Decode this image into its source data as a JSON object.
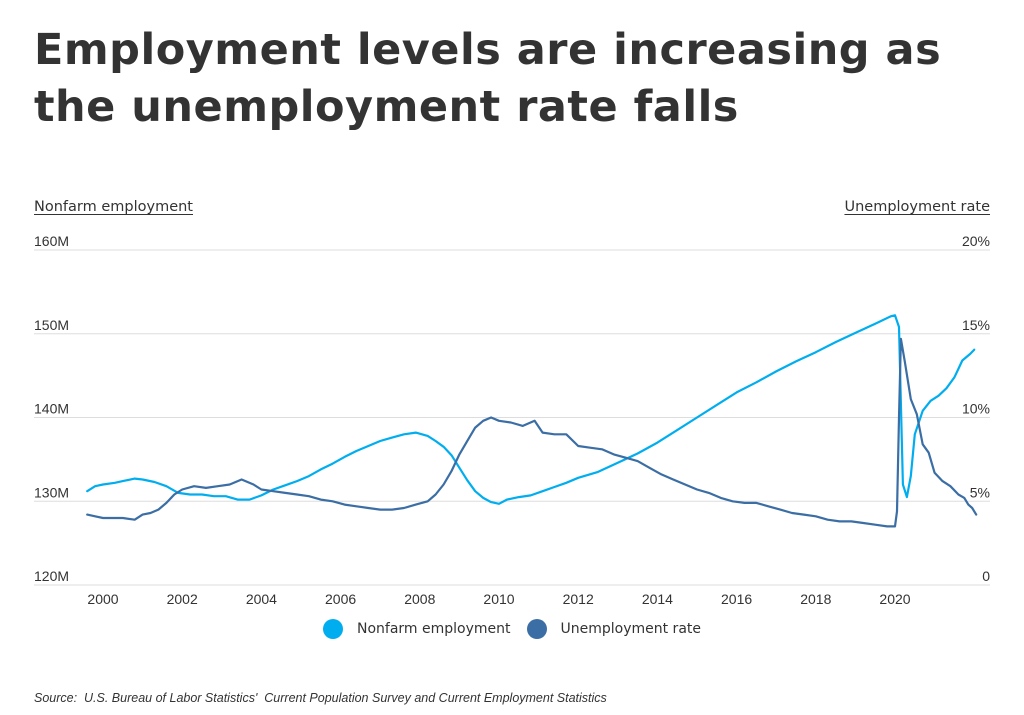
{
  "title": "Employment levels are increasing as the unemployment rate falls",
  "source": "Source:  U.S. Bureau of Labor Statistics'  Current Population Survey and Current Employment Statistics",
  "colors": {
    "nonfarm": "#00AEEF",
    "unemployment": "#3B6EA5",
    "grid": "#DDDDDD",
    "text": "#333333"
  },
  "chart_data": {
    "type": "line",
    "title": "Employment levels are increasing as the unemployment rate falls",
    "xlabel": "",
    "ylabel_left": "Nonfarm employment",
    "ylabel_right": "Unemployment rate",
    "x_ticks": [
      "2000",
      "2002",
      "2004",
      "2006",
      "2008",
      "2010",
      "2012",
      "2014",
      "2016",
      "2018",
      "2020"
    ],
    "y_left_ticks": [
      "120M",
      "130M",
      "140M",
      "150M",
      "160M"
    ],
    "y_right_ticks": [
      "0",
      "5%",
      "10%",
      "15%",
      "20%"
    ],
    "y_left_lim": [
      120,
      160
    ],
    "y_right_lim": [
      0,
      20
    ],
    "x_lim": [
      1999.5,
      2021.5
    ],
    "grid": true,
    "legend_position": "bottom-center",
    "series": [
      {
        "name": "Nonfarm employment",
        "axis": "left",
        "unit": "millions",
        "points": [
          [
            1999.6,
            131.2
          ],
          [
            1999.8,
            131.8
          ],
          [
            2000.0,
            132.0
          ],
          [
            2000.3,
            132.2
          ],
          [
            2000.5,
            132.4
          ],
          [
            2000.8,
            132.7
          ],
          [
            2001.0,
            132.6
          ],
          [
            2001.3,
            132.3
          ],
          [
            2001.6,
            131.8
          ],
          [
            2001.9,
            131.0
          ],
          [
            2002.2,
            130.8
          ],
          [
            2002.5,
            130.8
          ],
          [
            2002.8,
            130.6
          ],
          [
            2003.1,
            130.6
          ],
          [
            2003.4,
            130.2
          ],
          [
            2003.7,
            130.2
          ],
          [
            2004.0,
            130.7
          ],
          [
            2004.3,
            131.4
          ],
          [
            2004.6,
            131.9
          ],
          [
            2004.9,
            132.4
          ],
          [
            2005.2,
            133.0
          ],
          [
            2005.5,
            133.8
          ],
          [
            2005.8,
            134.5
          ],
          [
            2006.1,
            135.3
          ],
          [
            2006.4,
            136.0
          ],
          [
            2006.7,
            136.6
          ],
          [
            2007.0,
            137.2
          ],
          [
            2007.3,
            137.6
          ],
          [
            2007.6,
            138.0
          ],
          [
            2007.9,
            138.2
          ],
          [
            2008.2,
            137.8
          ],
          [
            2008.4,
            137.2
          ],
          [
            2008.6,
            136.5
          ],
          [
            2008.8,
            135.5
          ],
          [
            2009.0,
            134.0
          ],
          [
            2009.2,
            132.5
          ],
          [
            2009.4,
            131.2
          ],
          [
            2009.6,
            130.4
          ],
          [
            2009.8,
            129.9
          ],
          [
            2010.0,
            129.7
          ],
          [
            2010.2,
            130.2
          ],
          [
            2010.5,
            130.5
          ],
          [
            2010.8,
            130.7
          ],
          [
            2011.1,
            131.2
          ],
          [
            2011.4,
            131.7
          ],
          [
            2011.7,
            132.2
          ],
          [
            2012.0,
            132.8
          ],
          [
            2012.5,
            133.5
          ],
          [
            2013.0,
            134.6
          ],
          [
            2013.5,
            135.7
          ],
          [
            2014.0,
            137.0
          ],
          [
            2014.5,
            138.5
          ],
          [
            2015.0,
            140.0
          ],
          [
            2015.5,
            141.5
          ],
          [
            2016.0,
            143.0
          ],
          [
            2016.5,
            144.2
          ],
          [
            2017.0,
            145.5
          ],
          [
            2017.5,
            146.7
          ],
          [
            2018.0,
            147.8
          ],
          [
            2018.5,
            149.0
          ],
          [
            2019.0,
            150.1
          ],
          [
            2019.5,
            151.2
          ],
          [
            2019.9,
            152.1
          ],
          [
            2020.0,
            152.2
          ],
          [
            2020.1,
            150.8
          ],
          [
            2020.2,
            132.0
          ],
          [
            2020.3,
            130.5
          ],
          [
            2020.4,
            133.0
          ],
          [
            2020.5,
            138.0
          ],
          [
            2020.7,
            140.8
          ],
          [
            2020.9,
            142.0
          ],
          [
            2021.1,
            142.6
          ],
          [
            2021.3,
            143.5
          ],
          [
            2021.5,
            144.8
          ],
          [
            2021.6,
            145.8
          ],
          [
            2021.7,
            146.8
          ],
          [
            2021.9,
            147.6
          ],
          [
            2022.0,
            148.1
          ]
        ]
      },
      {
        "name": "Unemployment rate",
        "axis": "right",
        "unit": "percent",
        "points": [
          [
            1999.6,
            4.2
          ],
          [
            1999.8,
            4.1
          ],
          [
            2000.0,
            4.0
          ],
          [
            2000.3,
            4.0
          ],
          [
            2000.5,
            4.0
          ],
          [
            2000.8,
            3.9
          ],
          [
            2001.0,
            4.2
          ],
          [
            2001.2,
            4.3
          ],
          [
            2001.4,
            4.5
          ],
          [
            2001.6,
            4.9
          ],
          [
            2001.8,
            5.4
          ],
          [
            2002.0,
            5.7
          ],
          [
            2002.3,
            5.9
          ],
          [
            2002.6,
            5.8
          ],
          [
            2002.9,
            5.9
          ],
          [
            2003.2,
            6.0
          ],
          [
            2003.5,
            6.3
          ],
          [
            2003.8,
            6.0
          ],
          [
            2004.0,
            5.7
          ],
          [
            2004.3,
            5.6
          ],
          [
            2004.6,
            5.5
          ],
          [
            2004.9,
            5.4
          ],
          [
            2005.2,
            5.3
          ],
          [
            2005.5,
            5.1
          ],
          [
            2005.8,
            5.0
          ],
          [
            2006.1,
            4.8
          ],
          [
            2006.4,
            4.7
          ],
          [
            2006.7,
            4.6
          ],
          [
            2007.0,
            4.5
          ],
          [
            2007.3,
            4.5
          ],
          [
            2007.6,
            4.6
          ],
          [
            2007.9,
            4.8
          ],
          [
            2008.2,
            5.0
          ],
          [
            2008.4,
            5.4
          ],
          [
            2008.6,
            6.0
          ],
          [
            2008.8,
            6.8
          ],
          [
            2009.0,
            7.8
          ],
          [
            2009.2,
            8.6
          ],
          [
            2009.4,
            9.4
          ],
          [
            2009.6,
            9.8
          ],
          [
            2009.8,
            10.0
          ],
          [
            2010.0,
            9.8
          ],
          [
            2010.3,
            9.7
          ],
          [
            2010.6,
            9.5
          ],
          [
            2010.9,
            9.8
          ],
          [
            2011.1,
            9.1
          ],
          [
            2011.4,
            9.0
          ],
          [
            2011.7,
            9.0
          ],
          [
            2012.0,
            8.3
          ],
          [
            2012.3,
            8.2
          ],
          [
            2012.6,
            8.1
          ],
          [
            2012.9,
            7.8
          ],
          [
            2013.2,
            7.6
          ],
          [
            2013.5,
            7.4
          ],
          [
            2013.8,
            7.0
          ],
          [
            2014.1,
            6.6
          ],
          [
            2014.4,
            6.3
          ],
          [
            2014.7,
            6.0
          ],
          [
            2015.0,
            5.7
          ],
          [
            2015.3,
            5.5
          ],
          [
            2015.6,
            5.2
          ],
          [
            2015.9,
            5.0
          ],
          [
            2016.2,
            4.9
          ],
          [
            2016.5,
            4.9
          ],
          [
            2016.8,
            4.7
          ],
          [
            2017.1,
            4.5
          ],
          [
            2017.4,
            4.3
          ],
          [
            2017.7,
            4.2
          ],
          [
            2018.0,
            4.1
          ],
          [
            2018.3,
            3.9
          ],
          [
            2018.6,
            3.8
          ],
          [
            2018.9,
            3.8
          ],
          [
            2019.2,
            3.7
          ],
          [
            2019.5,
            3.6
          ],
          [
            2019.8,
            3.5
          ],
          [
            2020.0,
            3.5
          ],
          [
            2020.05,
            4.4
          ],
          [
            2020.1,
            10.0
          ],
          [
            2020.15,
            14.7
          ],
          [
            2020.25,
            13.3
          ],
          [
            2020.4,
            11.1
          ],
          [
            2020.55,
            10.2
          ],
          [
            2020.7,
            8.4
          ],
          [
            2020.85,
            7.9
          ],
          [
            2021.0,
            6.7
          ],
          [
            2021.2,
            6.2
          ],
          [
            2021.4,
            5.9
          ],
          [
            2021.6,
            5.4
          ],
          [
            2021.75,
            5.2
          ],
          [
            2021.85,
            4.8
          ],
          [
            2021.95,
            4.6
          ],
          [
            2022.05,
            4.2
          ]
        ]
      }
    ]
  }
}
